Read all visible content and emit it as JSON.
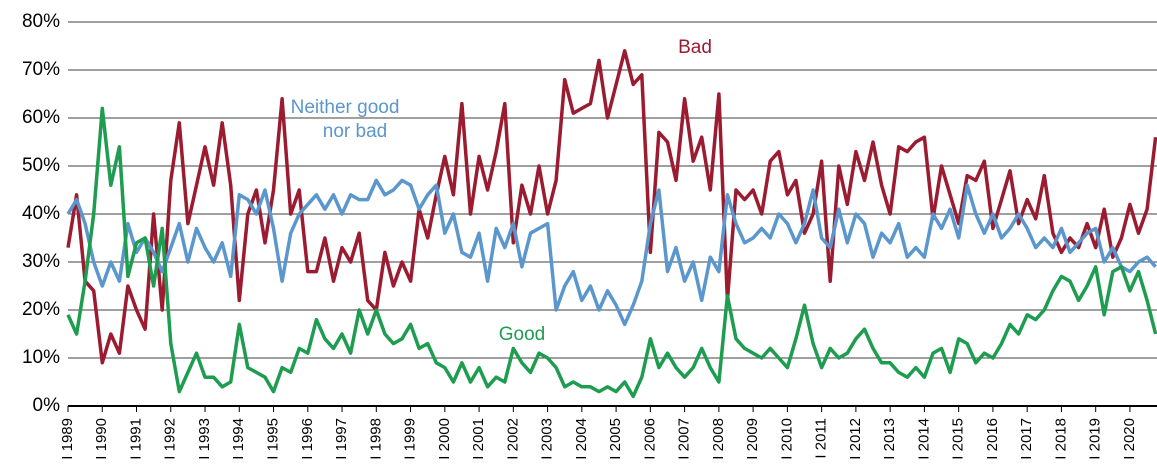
{
  "chart_data": {
    "type": "line",
    "annotations": [
      {
        "text": "Bad",
        "series": 0
      },
      {
        "text": "Neither good",
        "series": 1
      },
      {
        "text": "nor bad",
        "series": 1
      },
      {
        "text": "Good",
        "series": 2
      }
    ],
    "x": [
      1989,
      1989.25,
      1989.5,
      1989.75,
      1990,
      1990.25,
      1990.5,
      1990.75,
      1991,
      1991.25,
      1991.5,
      1991.75,
      1992,
      1992.25,
      1992.5,
      1992.75,
      1993,
      1993.25,
      1993.5,
      1993.75,
      1994,
      1994.25,
      1994.5,
      1994.75,
      1995,
      1995.25,
      1995.5,
      1995.75,
      1996,
      1996.25,
      1996.5,
      1996.75,
      1997,
      1997.25,
      1997.5,
      1997.75,
      1998,
      1998.25,
      1998.5,
      1998.75,
      1999,
      1999.25,
      1999.5,
      1999.75,
      2000,
      2000.25,
      2000.5,
      2000.75,
      2001,
      2001.25,
      2001.5,
      2001.75,
      2002,
      2002.25,
      2002.5,
      2002.75,
      2003,
      2003.25,
      2003.5,
      2003.75,
      2004,
      2004.25,
      2004.5,
      2004.75,
      2005,
      2005.25,
      2005.5,
      2005.75,
      2006,
      2006.25,
      2006.5,
      2006.75,
      2007,
      2007.25,
      2007.5,
      2007.75,
      2008,
      2008.25,
      2008.5,
      2008.75,
      2009,
      2009.25,
      2009.5,
      2009.75,
      2010,
      2010.25,
      2010.5,
      2010.75,
      2011,
      2011.25,
      2011.5,
      2011.75,
      2012,
      2012.25,
      2012.5,
      2012.75,
      2013,
      2013.25,
      2013.5,
      2013.75,
      2014,
      2014.25,
      2014.5,
      2014.75,
      2015,
      2015.25,
      2015.5,
      2015.75,
      2016,
      2016.25,
      2016.5,
      2016.75,
      2017,
      2017.25,
      2017.5,
      2017.75,
      2018,
      2018.25,
      2018.5,
      2018.75,
      2019,
      2019.25,
      2019.5,
      2019.75,
      2020,
      2020.25,
      2020.5,
      2020.75
    ],
    "series": [
      {
        "name": "Bad",
        "color": "#9b1b30",
        "values": [
          33,
          44,
          26,
          24,
          9,
          15,
          11,
          25,
          20,
          16,
          40,
          20,
          47,
          59,
          38,
          46,
          54,
          46,
          59,
          46,
          22,
          40,
          45,
          34,
          45,
          64,
          40,
          45,
          28,
          28,
          35,
          26,
          33,
          30,
          36,
          22,
          20,
          32,
          25,
          30,
          26,
          41,
          35,
          44,
          52,
          44,
          63,
          40,
          52,
          45,
          53,
          63,
          34,
          46,
          40,
          50,
          40,
          47,
          68,
          61,
          62,
          63,
          72,
          60,
          67,
          74,
          67,
          69,
          32,
          57,
          55,
          47,
          64,
          51,
          56,
          45,
          65,
          22,
          45,
          43,
          45,
          40,
          51,
          53,
          44,
          47,
          36,
          40,
          51,
          26,
          50,
          42,
          53,
          47,
          55,
          46,
          40,
          54,
          53,
          55,
          56,
          39,
          50,
          44,
          38,
          48,
          47,
          51,
          37,
          43,
          49,
          38,
          43,
          39,
          48,
          36,
          32,
          35,
          33,
          38,
          33,
          41,
          31,
          35,
          42,
          36,
          41,
          56
        ]
      },
      {
        "name": "Neither good nor bad",
        "color": "#5b96cd",
        "values": [
          40,
          43,
          38,
          30,
          25,
          30,
          26,
          38,
          32,
          35,
          32,
          28,
          33,
          38,
          30,
          37,
          33,
          30,
          34,
          27,
          44,
          43,
          40,
          45,
          37,
          26,
          36,
          40,
          42,
          44,
          41,
          44,
          40,
          44,
          43,
          43,
          47,
          44,
          45,
          47,
          46,
          41,
          44,
          46,
          36,
          40,
          32,
          31,
          36,
          26,
          37,
          33,
          38,
          29,
          36,
          37,
          38,
          20,
          25,
          28,
          22,
          25,
          20,
          24,
          21,
          17,
          21,
          26,
          38,
          45,
          28,
          33,
          26,
          30,
          22,
          31,
          28,
          44,
          38,
          34,
          35,
          37,
          35,
          40,
          38,
          34,
          38,
          45,
          35,
          33,
          41,
          34,
          40,
          38,
          31,
          36,
          34,
          38,
          31,
          33,
          31,
          40,
          37,
          41,
          35,
          46,
          40,
          36,
          40,
          35,
          37,
          40,
          37,
          33,
          35,
          33,
          37,
          32,
          34,
          36,
          37,
          30,
          33,
          29,
          28,
          30,
          31,
          29
        ]
      },
      {
        "name": "Good",
        "color": "#1e9c50",
        "values": [
          19,
          15,
          26,
          40,
          62,
          46,
          54,
          27,
          34,
          35,
          25,
          37,
          13,
          3,
          7,
          11,
          6,
          6,
          4,
          5,
          17,
          8,
          7,
          6,
          3,
          8,
          7,
          12,
          11,
          18,
          14,
          12,
          15,
          11,
          20,
          15,
          20,
          15,
          13,
          14,
          17,
          12,
          13,
          9,
          8,
          5,
          9,
          5,
          8,
          4,
          6,
          5,
          12,
          9,
          7,
          11,
          10,
          8,
          4,
          5,
          4,
          4,
          3,
          4,
          3,
          5,
          2,
          6,
          14,
          8,
          11,
          8,
          6,
          8,
          12,
          8,
          5,
          23,
          14,
          12,
          11,
          10,
          12,
          10,
          8,
          14,
          21,
          13,
          8,
          12,
          10,
          11,
          14,
          16,
          12,
          9,
          9,
          7,
          6,
          8,
          6,
          11,
          12,
          7,
          14,
          13,
          9,
          11,
          10,
          13,
          17,
          15,
          19,
          18,
          20,
          24,
          27,
          26,
          22,
          25,
          29,
          19,
          28,
          29,
          24,
          28,
          22,
          15
        ]
      }
    ],
    "xlim": [
      1989,
      2020.79
    ],
    "xticks": [
      {
        "value": 1989,
        "label": "I 1989"
      },
      {
        "value": 1990,
        "label": "I 1990"
      },
      {
        "value": 1991,
        "label": "I 1991"
      },
      {
        "value": 1992,
        "label": "I 1992"
      },
      {
        "value": 1993,
        "label": "I 1993"
      },
      {
        "value": 1994,
        "label": "I 1994"
      },
      {
        "value": 1995,
        "label": "I 1995"
      },
      {
        "value": 1996,
        "label": "I 1996"
      },
      {
        "value": 1997,
        "label": "I 1997"
      },
      {
        "value": 1998,
        "label": "I 1998"
      },
      {
        "value": 1999,
        "label": "I 1999"
      },
      {
        "value": 2000,
        "label": "I 2000"
      },
      {
        "value": 2001,
        "label": "I 2001"
      },
      {
        "value": 2002,
        "label": "I 2002"
      },
      {
        "value": 2003,
        "label": "I 2003"
      },
      {
        "value": 2004,
        "label": "I 2004"
      },
      {
        "value": 2005,
        "label": "I 2005"
      },
      {
        "value": 2006,
        "label": "I 2006"
      },
      {
        "value": 2007,
        "label": "I 2007"
      },
      {
        "value": 2008,
        "label": "I 2008"
      },
      {
        "value": 2009,
        "label": "I 2009"
      },
      {
        "value": 2010,
        "label": "I 2010"
      },
      {
        "value": 2011,
        "label": "I 2011"
      },
      {
        "value": 2012,
        "label": "I 2012"
      },
      {
        "value": 2013,
        "label": "I 2013"
      },
      {
        "value": 2014,
        "label": "I 2014"
      },
      {
        "value": 2015,
        "label": "I 2015"
      },
      {
        "value": 2016,
        "label": "I 2016"
      },
      {
        "value": 2017,
        "label": "I 2017"
      },
      {
        "value": 2018,
        "label": "I 2018"
      },
      {
        "value": 2019,
        "label": "I 2019"
      },
      {
        "value": 2020,
        "label": "I 2020"
      }
    ],
    "ylim": [
      0,
      80
    ],
    "yticks": [
      {
        "value": 0,
        "label": "0%"
      },
      {
        "value": 10,
        "label": "10%"
      },
      {
        "value": 20,
        "label": "20%"
      },
      {
        "value": 30,
        "label": "30%"
      },
      {
        "value": 40,
        "label": "40%"
      },
      {
        "value": 50,
        "label": "50%"
      },
      {
        "value": 60,
        "label": "60%"
      },
      {
        "value": 70,
        "label": "70%"
      },
      {
        "value": 80,
        "label": "80%"
      }
    ],
    "grid": true
  }
}
